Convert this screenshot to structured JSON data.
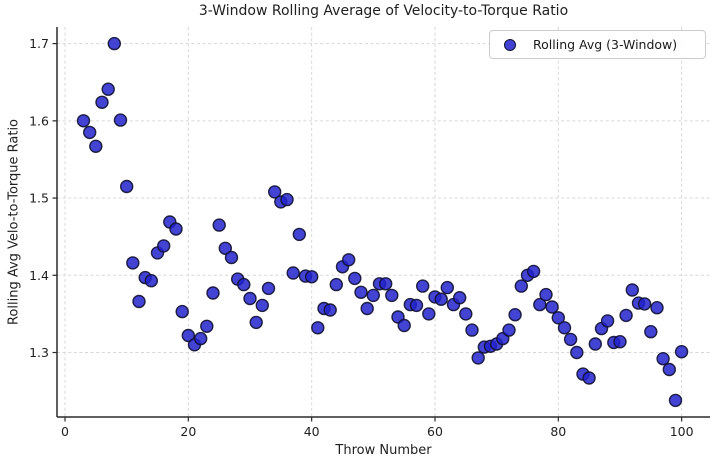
{
  "chart_data": {
    "type": "scatter",
    "title": "3-Window Rolling Average of Velocity-to-Torque Ratio",
    "xlabel": "Throw Number",
    "ylabel": "Rolling Avg Velo-to-Torque Ratio",
    "legend": {
      "label": "Rolling Avg (3-Window)",
      "position": "upper right"
    },
    "marker": {
      "shape": "circle",
      "fill_color": "#2222cc",
      "edge_color": "#111133",
      "radius_px": 6
    },
    "grid": {
      "visible": true,
      "style": "dashed",
      "color": "#d7d7d7"
    },
    "axis_color": "#2b2b2b",
    "background_color": "#ffffff",
    "xlim": [
      -1.3,
      104.6
    ],
    "ylim": [
      1.2165,
      1.7215
    ],
    "xticks": [
      0,
      20,
      40,
      60,
      80,
      100
    ],
    "yticks": [
      1.3,
      1.4,
      1.5,
      1.6,
      1.7
    ],
    "x": [
      3,
      4,
      5,
      6,
      7,
      8,
      9,
      10,
      11,
      12,
      13,
      14,
      15,
      16,
      17,
      18,
      19,
      20,
      21,
      22,
      23,
      24,
      25,
      26,
      27,
      28,
      29,
      30,
      31,
      32,
      33,
      34,
      35,
      36,
      37,
      38,
      39,
      40,
      41,
      42,
      43,
      44,
      45,
      46,
      47,
      48,
      49,
      50,
      51,
      52,
      53,
      54,
      55,
      56,
      57,
      58,
      59,
      60,
      61,
      62,
      63,
      64,
      65,
      66,
      67,
      68,
      69,
      70,
      71,
      72,
      73,
      74,
      75,
      76,
      77,
      78,
      79,
      80,
      81,
      82,
      83,
      84,
      85,
      86,
      87,
      88,
      89,
      90,
      91,
      92,
      93,
      94,
      95,
      96,
      97,
      98,
      99,
      100
    ],
    "y": [
      1.6,
      1.585,
      1.567,
      1.624,
      1.641,
      1.7,
      1.601,
      1.515,
      1.416,
      1.366,
      1.397,
      1.393,
      1.429,
      1.438,
      1.469,
      1.46,
      1.353,
      1.322,
      1.31,
      1.318,
      1.334,
      1.377,
      1.465,
      1.435,
      1.423,
      1.395,
      1.388,
      1.37,
      1.339,
      1.361,
      1.383,
      1.508,
      1.495,
      1.498,
      1.403,
      1.453,
      1.399,
      1.398,
      1.332,
      1.357,
      1.355,
      1.388,
      1.411,
      1.42,
      1.396,
      1.378,
      1.357,
      1.374,
      1.389,
      1.389,
      1.374,
      1.346,
      1.335,
      1.362,
      1.361,
      1.386,
      1.35,
      1.372,
      1.369,
      1.384,
      1.362,
      1.371,
      1.35,
      1.329,
      1.293,
      1.307,
      1.308,
      1.311,
      1.318,
      1.329,
      1.349,
      1.386,
      1.4,
      1.405,
      1.362,
      1.375,
      1.359,
      1.345,
      1.332,
      1.317,
      1.3,
      1.272,
      1.267,
      1.311,
      1.331,
      1.341,
      1.313,
      1.314,
      1.348,
      1.381,
      1.364,
      1.363,
      1.327,
      1.358,
      1.292,
      1.278,
      1.238,
      1.301
    ]
  }
}
